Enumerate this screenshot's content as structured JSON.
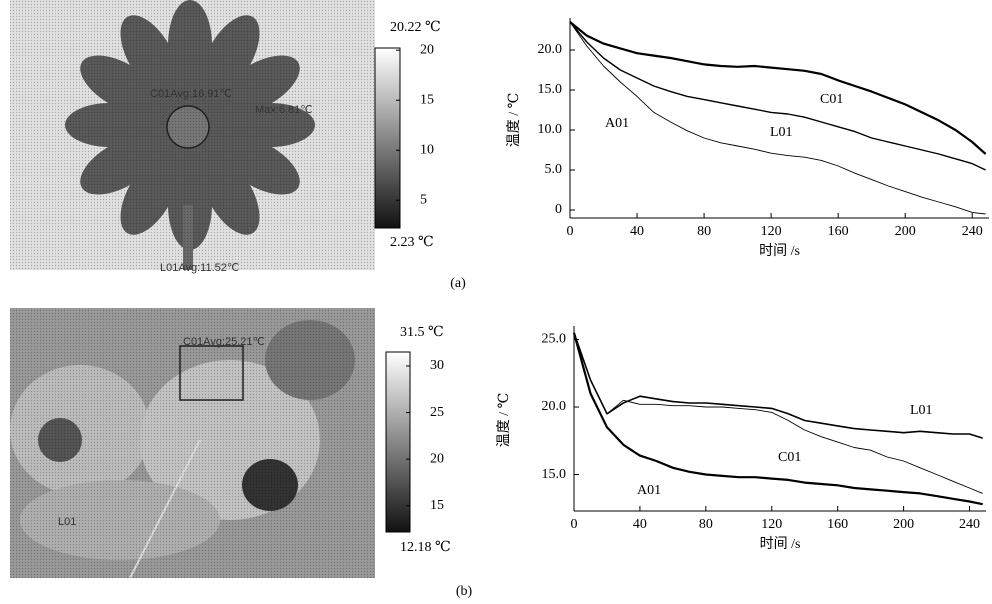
{
  "images": [
    {
      "labels": [
        "C01Avg:16.91℃",
        "Max:6.81℃",
        "L01Avg:11.52℃"
      ],
      "colorbar": {
        "lim": [
          2.23,
          20.22
        ],
        "ticks": [
          5,
          10,
          15,
          20
        ],
        "max_label": "20.22 ℃",
        "min_label": "2.23 ℃"
      },
      "caption": "(a)"
    },
    {
      "labels": [
        "C01Avg:25.21℃",
        "L01"
      ],
      "colorbar": {
        "lim": [
          12.18,
          31.5
        ],
        "ticks": [
          15,
          20,
          25,
          30
        ],
        "max_label": "31.5 ℃",
        "min_label": "12.18 ℃"
      },
      "caption": "(b)"
    }
  ],
  "chart_data": [
    {
      "type": "line",
      "xlabel": "时间 /s",
      "ylabel": "温度 / ℃",
      "x": [
        0,
        10,
        20,
        30,
        40,
        50,
        60,
        70,
        80,
        90,
        100,
        110,
        120,
        130,
        140,
        150,
        160,
        170,
        180,
        190,
        200,
        210,
        220,
        230,
        240,
        248
      ],
      "xlim": [
        0,
        250
      ],
      "xticks": [
        0,
        40,
        80,
        120,
        160,
        200,
        240
      ],
      "ylim": [
        -1,
        24
      ],
      "yticks": [
        0,
        {
          "value": 5,
          "label": "5.0"
        },
        {
          "value": 10,
          "label": "10.0"
        },
        {
          "value": 15,
          "label": "15.0"
        },
        {
          "value": 20,
          "label": "20.0"
        }
      ],
      "series": [
        {
          "name": "C01",
          "color": "#000000",
          "values": [
            23.5,
            21.8,
            20.8,
            20.2,
            19.6,
            19.3,
            19.0,
            18.6,
            18.2,
            18.0,
            17.9,
            18.0,
            17.8,
            17.6,
            17.4,
            17.0,
            16.2,
            15.5,
            14.8,
            14.0,
            13.2,
            12.2,
            11.2,
            10.0,
            8.5,
            7.0
          ]
        },
        {
          "name": "L01",
          "color": "#000000",
          "values": [
            23.5,
            21.0,
            19.0,
            17.5,
            16.5,
            15.5,
            14.8,
            14.2,
            13.8,
            13.4,
            13.0,
            12.6,
            12.2,
            12.0,
            11.6,
            11.0,
            10.4,
            9.8,
            9.0,
            8.5,
            8.0,
            7.5,
            7.0,
            6.4,
            5.8,
            5.0
          ]
        },
        {
          "name": "A01",
          "color": "#000000",
          "values": [
            23.5,
            20.5,
            18.0,
            16.0,
            14.2,
            12.2,
            11.0,
            9.9,
            9.0,
            8.4,
            8.0,
            7.6,
            7.1,
            6.8,
            6.6,
            6.2,
            5.5,
            4.6,
            3.8,
            3.0,
            2.3,
            1.6,
            1.0,
            0.4,
            -0.3,
            -0.5
          ]
        }
      ]
    },
    {
      "type": "line",
      "xlabel": "时间 /s",
      "ylabel": "温度 / ℃",
      "x": [
        0,
        10,
        20,
        30,
        40,
        50,
        60,
        70,
        80,
        90,
        100,
        110,
        120,
        130,
        140,
        150,
        160,
        170,
        180,
        190,
        200,
        210,
        220,
        230,
        240,
        248
      ],
      "xlim": [
        0,
        250
      ],
      "xticks": [
        0,
        40,
        80,
        120,
        160,
        200,
        240
      ],
      "ylim": [
        12.3,
        26
      ],
      "yticks": [
        {
          "value": 15,
          "label": "15.0"
        },
        {
          "value": 20,
          "label": "20.0"
        },
        {
          "value": 25,
          "label": "25.0"
        }
      ],
      "series": [
        {
          "name": "L01",
          "color": "#000000",
          "values": [
            25.5,
            22.0,
            19.5,
            20.3,
            20.8,
            20.6,
            20.4,
            20.3,
            20.3,
            20.2,
            20.1,
            20.0,
            19.9,
            19.5,
            19.0,
            18.8,
            18.6,
            18.4,
            18.3,
            18.2,
            18.1,
            18.2,
            18.1,
            18.0,
            18.0,
            17.7
          ]
        },
        {
          "name": "C01",
          "color": "#000000",
          "values": [
            25.5,
            22.0,
            19.5,
            20.5,
            20.2,
            20.2,
            20.1,
            20.1,
            20.0,
            20.0,
            19.9,
            19.8,
            19.6,
            19.0,
            18.3,
            17.8,
            17.4,
            17.0,
            16.8,
            16.3,
            16.0,
            15.5,
            15.0,
            14.5,
            14.0,
            13.6
          ]
        },
        {
          "name": "A01",
          "color": "#000000",
          "values": [
            25.5,
            21.0,
            18.5,
            17.2,
            16.4,
            16.0,
            15.5,
            15.2,
            15.0,
            14.9,
            14.8,
            14.8,
            14.7,
            14.6,
            14.4,
            14.3,
            14.2,
            14.0,
            13.9,
            13.8,
            13.7,
            13.6,
            13.4,
            13.2,
            13.0,
            12.8
          ]
        }
      ]
    }
  ]
}
